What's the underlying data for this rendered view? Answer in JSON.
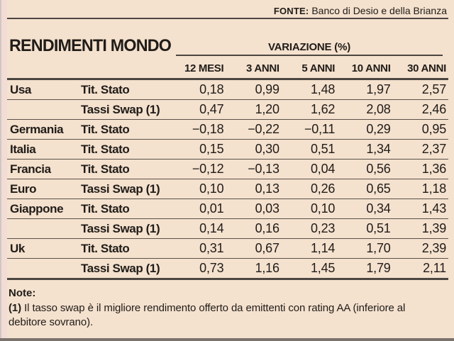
{
  "source": {
    "label": "FONTE:",
    "value": "Banco di Desio e della Brianza"
  },
  "chart_data": {
    "type": "table",
    "title": "RENDIMENTI MONDO",
    "column_group": "VARIAZIONE (%)",
    "columns": [
      "12 MESI",
      "3 ANNI",
      "5 ANNI",
      "10 ANNI",
      "30 ANNI"
    ],
    "rows": [
      {
        "country": "Usa",
        "instrument": "Tit. Stato",
        "values": [
          "0,18",
          "0,99",
          "1,48",
          "1,97",
          "2,57"
        ]
      },
      {
        "country": "",
        "instrument": "Tassi Swap (1)",
        "values": [
          "0,47",
          "1,20",
          "1,62",
          "2,08",
          "2,46"
        ]
      },
      {
        "country": "Germania",
        "instrument": "Tit. Stato",
        "values": [
          "−0,18",
          "−0,22",
          "−0,11",
          "0,29",
          "0,95"
        ]
      },
      {
        "country": "Italia",
        "instrument": "Tit. Stato",
        "values": [
          "0,15",
          "0,30",
          "0,51",
          "1,34",
          "2,37"
        ]
      },
      {
        "country": "Francia",
        "instrument": "Tit. Stato",
        "values": [
          "−0,12",
          "−0,13",
          "0,04",
          "0,56",
          "1,36"
        ]
      },
      {
        "country": "Euro",
        "instrument": "Tassi Swap (1)",
        "values": [
          "0,10",
          "0,13",
          "0,26",
          "0,65",
          "1,18"
        ]
      },
      {
        "country": "Giappone",
        "instrument": "Tit. Stato",
        "values": [
          "0,01",
          "0,03",
          "0,10",
          "0,34",
          "1,43"
        ]
      },
      {
        "country": "",
        "instrument": "Tassi Swap (1)",
        "values": [
          "0,14",
          "0,16",
          "0,23",
          "0,51",
          "1,39"
        ]
      },
      {
        "country": "Uk",
        "instrument": "Tit. Stato",
        "values": [
          "0,31",
          "0,67",
          "1,14",
          "1,70",
          "2,39"
        ]
      },
      {
        "country": "",
        "instrument": "Tassi Swap (1)",
        "values": [
          "0,73",
          "1,16",
          "1,45",
          "1,79",
          "2,11"
        ]
      }
    ]
  },
  "notes": {
    "heading": "Note:",
    "marker": "(1)",
    "text": " Il tasso swap è il migliore rendimento offerto da emittenti con rating AA (inferiore al debitore sovrano)."
  },
  "colors": {
    "background": "#f4e1ce",
    "text": "#201c18",
    "rule": "#4c4641"
  }
}
